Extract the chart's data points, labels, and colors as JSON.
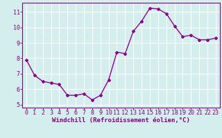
{
  "x": [
    0,
    1,
    2,
    3,
    4,
    5,
    6,
    7,
    8,
    9,
    10,
    11,
    12,
    13,
    14,
    15,
    16,
    17,
    18,
    19,
    20,
    21,
    22,
    23
  ],
  "y": [
    7.9,
    6.9,
    6.5,
    6.4,
    6.3,
    5.6,
    5.6,
    5.7,
    5.3,
    5.6,
    6.6,
    8.4,
    8.3,
    9.75,
    10.4,
    11.25,
    11.2,
    10.9,
    10.1,
    9.4,
    9.5,
    9.2,
    9.2,
    9.3
  ],
  "line_color": "#8B008B",
  "marker": "D",
  "marker_size": 2.0,
  "line_width": 1.0,
  "xlabel": "Windchill (Refroidissement éolien,°C)",
  "ylabel": "",
  "xlim": [
    -0.5,
    23.5
  ],
  "ylim": [
    4.8,
    11.6
  ],
  "yticks": [
    5,
    6,
    7,
    8,
    9,
    10,
    11
  ],
  "xticks": [
    0,
    1,
    2,
    3,
    4,
    5,
    6,
    7,
    8,
    9,
    10,
    11,
    12,
    13,
    14,
    15,
    16,
    17,
    18,
    19,
    20,
    21,
    22,
    23
  ],
  "bg_color": "#d4eeee",
  "grid_color": "#ffffff",
  "tick_color": "#800080",
  "axis_color": "#800080",
  "label_color": "#800080",
  "xlabel_fontsize": 6.5,
  "tick_fontsize": 6.0
}
